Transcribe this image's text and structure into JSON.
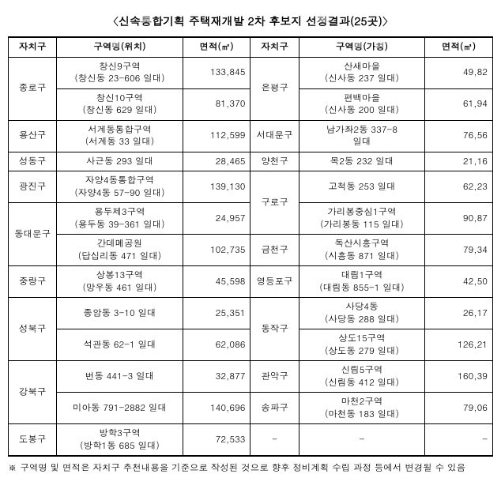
{
  "title": "〈신속통합기획 주택재개발 2차 후보지 선정결과(25곳)〉",
  "headers": {
    "gu": "자치구",
    "zone_loc": "구역명(위치)",
    "zone_tmp": "구역명(가칭)",
    "area": "면적(㎡)"
  },
  "left": [
    {
      "gu": "종로구",
      "rowspan": 2,
      "zone": "창신9구역\n(창신동 23-606 일대)",
      "area": "133,845"
    },
    {
      "zone": "창신10구역\n(창신동 629 일대)",
      "area": "81,370"
    },
    {
      "gu": "용산구",
      "rowspan": 1,
      "zone": "서계동통합구역\n(서계동 33 일대)",
      "area": "112,599"
    },
    {
      "gu": "성동구",
      "rowspan": 1,
      "zone": "사근동 293 일대",
      "area": "28,465"
    },
    {
      "gu": "광진구",
      "rowspan": 1,
      "zone": "자양4동통합구역\n(자양4동 57-90 일대)",
      "area": "139,130"
    },
    {
      "gu": "동대문구",
      "rowspan": 2,
      "zone": "용두제3구역\n(용두동 39-361 일대)",
      "area": "24,957"
    },
    {
      "zone": "간데메공원\n(답십리동 471 일대)",
      "area": "102,735"
    },
    {
      "gu": "중랑구",
      "rowspan": 1,
      "zone": "상봉13구역\n(망우동 461 일대)",
      "area": "45,598"
    },
    {
      "gu": "성북구",
      "rowspan": 2,
      "zone": "종암동 3-10 일대",
      "area": "25,351"
    },
    {
      "zone": "석관동 62-1 일대",
      "area": "62,086"
    },
    {
      "gu": "강북구",
      "rowspan": 2,
      "zone": "번동 441-3 일대",
      "area": "32,877"
    },
    {
      "zone": "미아동 791-2882 일대",
      "area": "140,696"
    },
    {
      "gu": "도봉구",
      "rowspan": 1,
      "zone": "방학3구역\n(방학1동 685 일대)",
      "area": "72,533"
    }
  ],
  "right": [
    {
      "gu": "은평구",
      "rowspan": 2,
      "zone": "산새마을\n(신사동 237 일대)",
      "area": "49,82"
    },
    {
      "zone": "편백마을\n(신사동 200 일대)",
      "area": "61,94"
    },
    {
      "gu": "서대문구",
      "rowspan": 1,
      "zone": "남가좌2동 337-8\n일대",
      "area": "76,56"
    },
    {
      "gu": "양천구",
      "rowspan": 1,
      "zone": "목2동 232 일대",
      "area": "21,16"
    },
    {
      "gu": "구로구",
      "rowspan": 2,
      "zone": "고척동 253 일대",
      "area": "62,23"
    },
    {
      "zone": "가리봉중심1구역\n(가리봉동 115 일대)",
      "area": "90,87"
    },
    {
      "gu": "금천구",
      "rowspan": 1,
      "zone": "독산시흥구역\n(시흥동 871 일대)",
      "area": "79,34"
    },
    {
      "gu": "영등포구",
      "rowspan": 1,
      "zone": "대림1구역\n(대림동 855-1 일대)",
      "area": "42,50"
    },
    {
      "gu": "동작구",
      "rowspan": 2,
      "zone": "사당4동\n(사당동 288 일대)",
      "area": "26,17"
    },
    {
      "zone": "상도15구역\n(상도동 279 일대)",
      "area": "126,21"
    },
    {
      "gu": "관악구",
      "rowspan": 1,
      "zone": "신림5구역\n(신림동 412 일대)",
      "area": "160,39"
    },
    {
      "gu": "송파구",
      "rowspan": 1,
      "zone": "마천2구역\n(마천동 183 일대)",
      "area": "79,06"
    },
    {
      "gu": "-",
      "rowspan": 1,
      "zone": "-",
      "area": "-"
    }
  ],
  "footnote": "※ 구역명 및 면적은 자치구 추천내용을 기준으로 작성된 것으로 향후 정비계획 수립 과정 등에서 변경될 수 있음"
}
